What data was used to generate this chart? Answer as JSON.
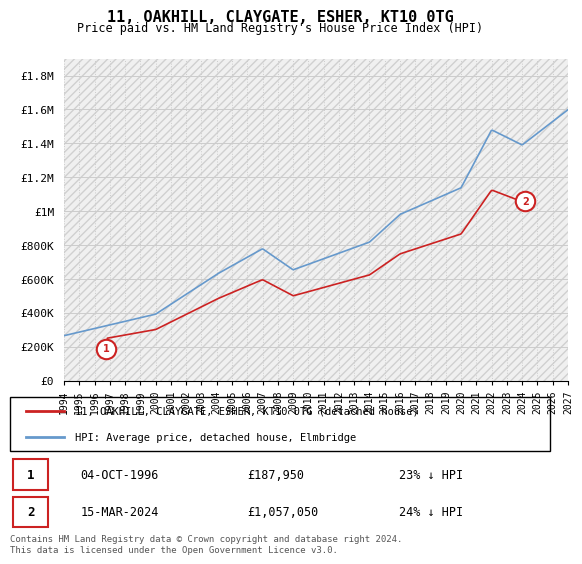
{
  "title": "11, OAKHILL, CLAYGATE, ESHER, KT10 0TG",
  "subtitle": "Price paid vs. HM Land Registry's House Price Index (HPI)",
  "ylim": [
    0,
    1900000
  ],
  "yticks": [
    0,
    200000,
    400000,
    600000,
    800000,
    1000000,
    1200000,
    1400000,
    1600000,
    1800000
  ],
  "ytick_labels": [
    "£0",
    "£200K",
    "£400K",
    "£600K",
    "£800K",
    "£1M",
    "£1.2M",
    "£1.4M",
    "£1.6M",
    "£1.8M"
  ],
  "xmin_year": 1994,
  "xmax_year": 2027,
  "xticks": [
    1994,
    1995,
    1996,
    1997,
    1998,
    1999,
    2000,
    2001,
    2002,
    2003,
    2004,
    2005,
    2006,
    2007,
    2008,
    2009,
    2010,
    2011,
    2012,
    2013,
    2014,
    2015,
    2016,
    2017,
    2018,
    2019,
    2020,
    2021,
    2022,
    2023,
    2024,
    2025,
    2026,
    2027
  ],
  "hpi_color": "#6699cc",
  "price_color": "#cc2222",
  "marker1_date": 1996.75,
  "marker1_price": 187950,
  "marker2_date": 2024.2,
  "marker2_price": 1057050,
  "legend_line1": "11, OAKHILL, CLAYGATE, ESHER, KT10 0TG (detached house)",
  "legend_line2": "HPI: Average price, detached house, Elmbridge",
  "table_row1_num": "1",
  "table_row1_date": "04-OCT-1996",
  "table_row1_price": "£187,950",
  "table_row1_hpi": "23% ↓ HPI",
  "table_row2_num": "2",
  "table_row2_date": "15-MAR-2024",
  "table_row2_price": "£1,057,050",
  "table_row2_hpi": "24% ↓ HPI",
  "footer": "Contains HM Land Registry data © Crown copyright and database right 2024.\nThis data is licensed under the Open Government Licence v3.0.",
  "grid_color": "#cccccc"
}
